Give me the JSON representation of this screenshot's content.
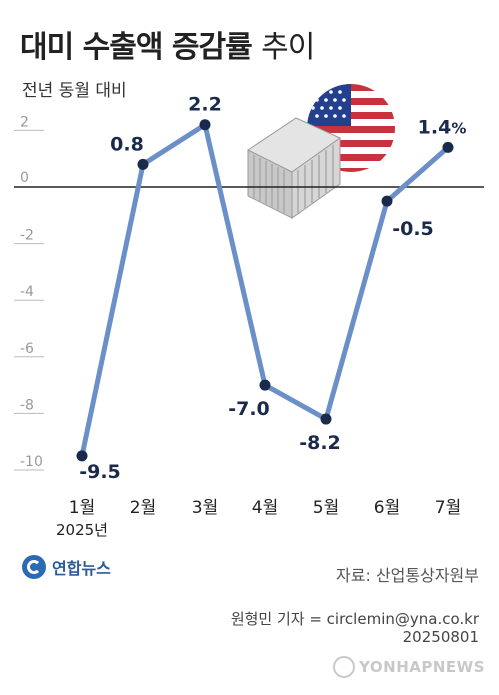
{
  "header": {
    "title_bold": "대미 수출액 증감률",
    "title_light": "추이",
    "subtitle": "전년 동월 대비"
  },
  "chart_data": {
    "type": "line",
    "categories": [
      "1월",
      "2월",
      "3월",
      "4월",
      "5월",
      "6월",
      "7월"
    ],
    "values": [
      -9.5,
      0.8,
      2.2,
      -7.0,
      -8.2,
      -0.5,
      1.4
    ],
    "value_labels": [
      "-9.5",
      "0.8",
      "2.2",
      "-7.0",
      "-8.2",
      "-0.5",
      "1.4"
    ],
    "value_label_suffix_last": "%",
    "year_label": "2025년",
    "y_ticks": [
      2,
      0,
      -2,
      -4,
      -6,
      -8,
      -10
    ],
    "ylim": [
      -11,
      2.5
    ],
    "grid": false,
    "zero_line": true,
    "colors": {
      "line": "#6b8fc9",
      "point": "#1a2a4a",
      "label": "#1a2a4a",
      "tick": "#bbbbbb"
    }
  },
  "footer": {
    "logo_text": "연합뉴스",
    "source": "자료: 산업통상자원부",
    "credit": "원형민 기자 = circlemin@yna.co.kr",
    "date": "20250801",
    "watermark": "YONHAPNEWS"
  },
  "illustration": {
    "flag": "us-flag-icon",
    "container": "shipping-container-icon"
  }
}
